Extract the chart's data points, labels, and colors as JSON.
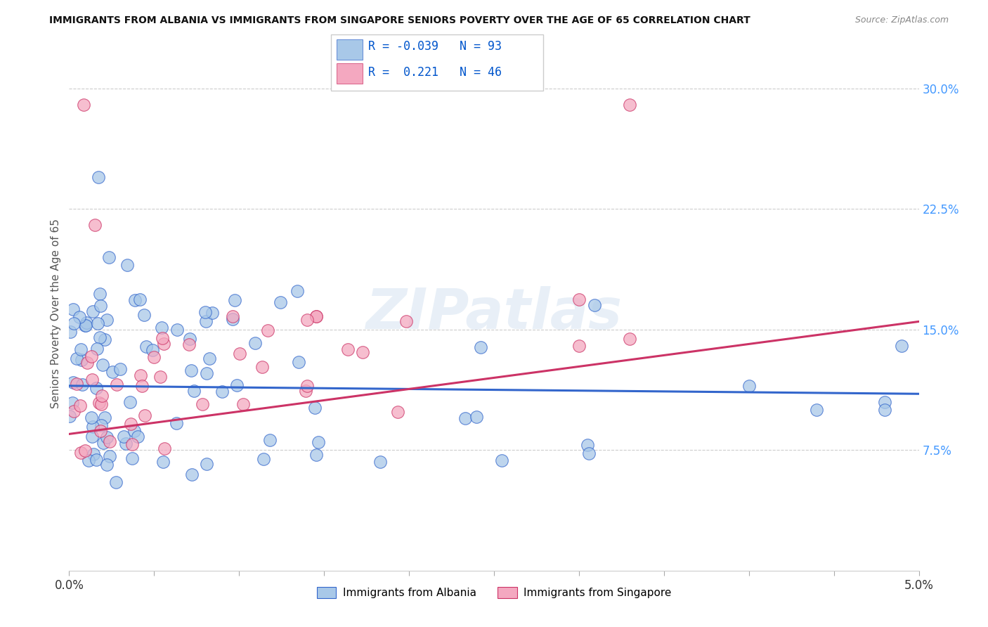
{
  "title": "IMMIGRANTS FROM ALBANIA VS IMMIGRANTS FROM SINGAPORE SENIORS POVERTY OVER THE AGE OF 65 CORRELATION CHART",
  "source": "Source: ZipAtlas.com",
  "ylabel": "Seniors Poverty Over the Age of 65",
  "xlabel_albania": "Immigrants from Albania",
  "xlabel_singapore": "Immigrants from Singapore",
  "albania_R": -0.039,
  "albania_N": 93,
  "singapore_R": 0.221,
  "singapore_N": 46,
  "color_albania": "#A8C8E8",
  "color_singapore": "#F4A8C0",
  "line_color_albania": "#3366CC",
  "line_color_singapore": "#CC3366",
  "background_color": "#FFFFFF",
  "watermark": "ZIPatlas",
  "legend_R_color": "#0055CC",
  "ytick_color": "#4499FF",
  "xtick_color": "#4499FF"
}
